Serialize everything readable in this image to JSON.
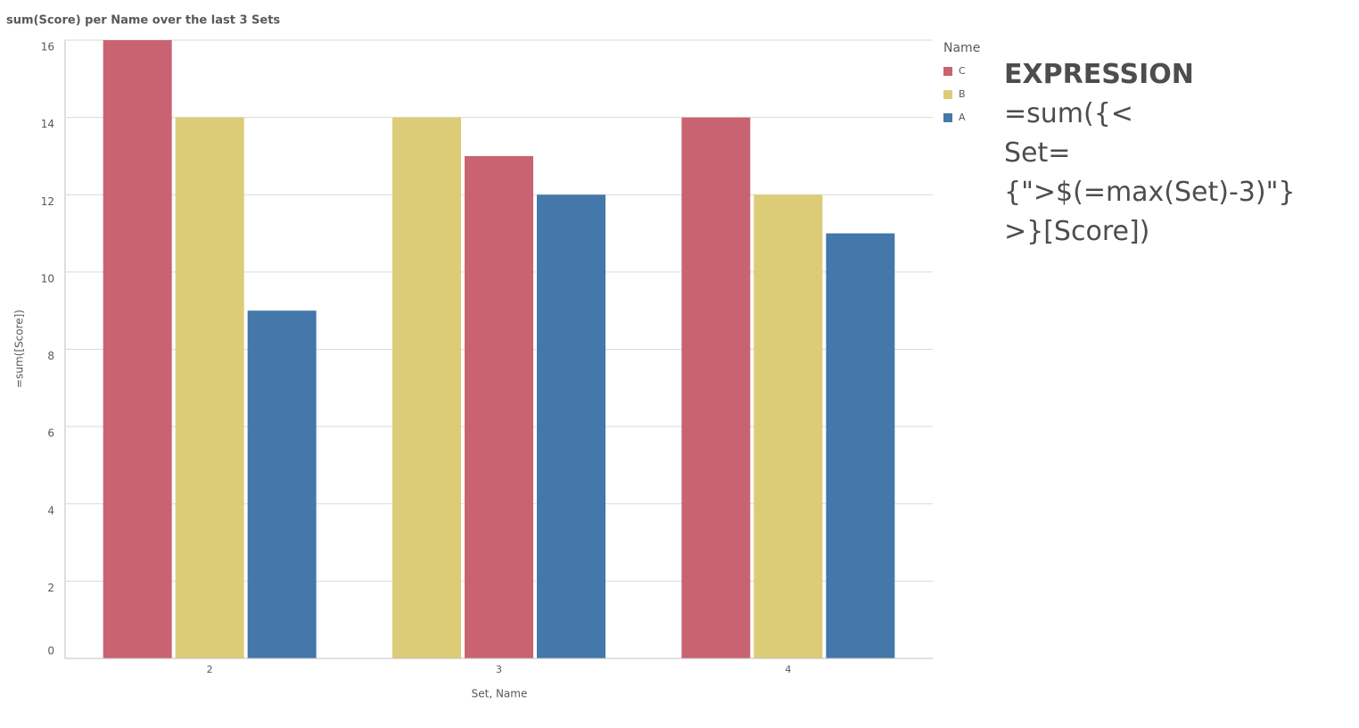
{
  "chart_data": {
    "type": "bar",
    "title": "sum(Score) per Name over the last 3 Sets",
    "x_label": "Set, Name",
    "y_label": "=sum([Score])",
    "categories": [
      "2",
      "3",
      "4"
    ],
    "legend_title": "Name",
    "series": [
      {
        "name": "C",
        "color": "#c96372",
        "values": [
          16,
          13,
          14
        ]
      },
      {
        "name": "B",
        "color": "#dccc77",
        "values": [
          14,
          14,
          12
        ]
      },
      {
        "name": "A",
        "color": "#4477aa",
        "values": [
          9,
          12,
          11
        ]
      }
    ],
    "ylim": [
      0,
      16
    ],
    "yticks": [
      0,
      2,
      4,
      6,
      8,
      10,
      12,
      14,
      16
    ],
    "grid": true,
    "legend_position": "right"
  },
  "annotation": {
    "title": "EXPRESSION",
    "lines": [
      "=sum({<",
      "Set={\">$(=max(Set)-3)\"}",
      ">}[Score])"
    ]
  }
}
